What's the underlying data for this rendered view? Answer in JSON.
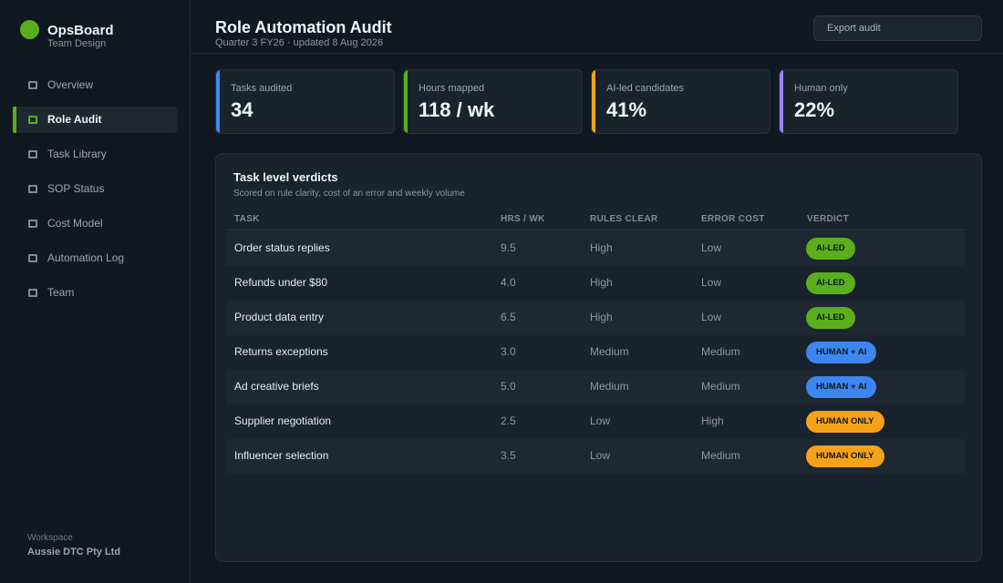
{
  "app": {
    "name": "OpsBoard",
    "subtitle": "Team Design"
  },
  "sidebar": {
    "items": [
      {
        "label": "Overview",
        "icon": "square-icon",
        "active": false
      },
      {
        "label": "Role Audit",
        "icon": "square-icon",
        "active": true
      },
      {
        "label": "Task Library",
        "icon": "square-icon",
        "active": false
      },
      {
        "label": "SOP Status",
        "icon": "square-icon",
        "active": false
      },
      {
        "label": "Cost Model",
        "icon": "square-icon",
        "active": false
      },
      {
        "label": "Automation Log",
        "icon": "square-icon",
        "active": false
      },
      {
        "label": "Team",
        "icon": "square-icon",
        "active": false
      }
    ],
    "workspace_label": "Workspace",
    "workspace_name": "Aussie DTC Pty Ltd"
  },
  "header": {
    "title": "Role Automation Audit",
    "subtitle": "Quarter 3 FY26 · updated 8 Aug 2026",
    "export_label": "Export audit"
  },
  "stats": [
    {
      "label": "Tasks audited",
      "value": "34",
      "accent": "#3d86f0"
    },
    {
      "label": "Hours mapped",
      "value": "118 / wk",
      "accent": "#5aae1c"
    },
    {
      "label": "AI-led candidates",
      "value": "41%",
      "accent": "#f5a21a"
    },
    {
      "label": "Human only",
      "value": "22%",
      "accent": "#9b7ff0"
    }
  ],
  "panel": {
    "title": "Task level verdicts",
    "subtitle": "Scored on rule clarity, cost of an error and weekly volume",
    "columns": [
      "TASK",
      "HRS / WK",
      "RULES CLEAR",
      "ERROR COST",
      "VERDICT"
    ],
    "rows": [
      {
        "task": "Order status replies",
        "hours": "9.5",
        "rules": "High",
        "error": "Low",
        "verdict": "AI-LED",
        "kind": "ai"
      },
      {
        "task": "Refunds under $80",
        "hours": "4.0",
        "rules": "High",
        "error": "Low",
        "verdict": "AI-LED",
        "kind": "ai"
      },
      {
        "task": "Product data entry",
        "hours": "6.5",
        "rules": "High",
        "error": "Low",
        "verdict": "AI-LED",
        "kind": "ai"
      },
      {
        "task": "Returns exceptions",
        "hours": "3.0",
        "rules": "Medium",
        "error": "Medium",
        "verdict": "HUMAN + AI",
        "kind": "both"
      },
      {
        "task": "Ad creative briefs",
        "hours": "5.0",
        "rules": "Medium",
        "error": "Medium",
        "verdict": "HUMAN + AI",
        "kind": "both"
      },
      {
        "task": "Supplier negotiation",
        "hours": "2.5",
        "rules": "Low",
        "error": "High",
        "verdict": "HUMAN ONLY",
        "kind": "human"
      },
      {
        "task": "Influencer selection",
        "hours": "3.5",
        "rules": "Low",
        "error": "Medium",
        "verdict": "HUMAN ONLY",
        "kind": "human"
      }
    ]
  },
  "colors": {
    "ai_led": "#5aae1c",
    "human_ai": "#3d86f0",
    "human_only": "#f5a21a",
    "background": "#111820",
    "panel": "#19232d"
  }
}
